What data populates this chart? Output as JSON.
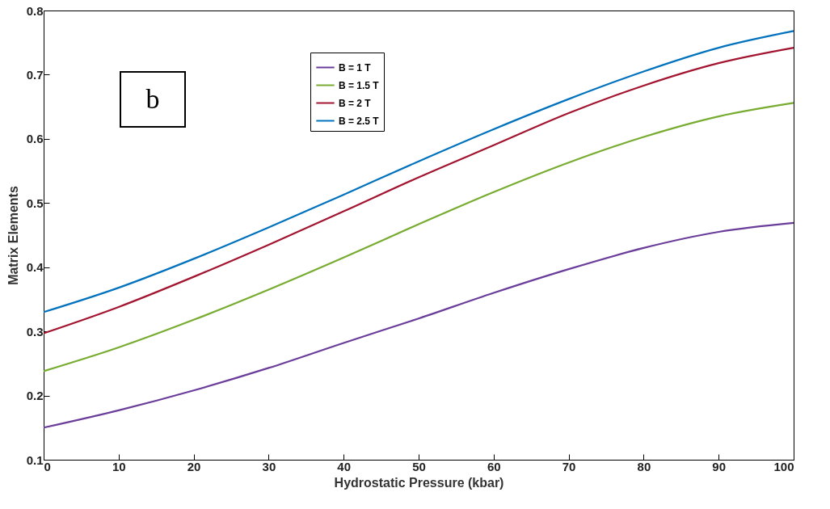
{
  "chart_data": {
    "type": "line",
    "xlabel": "Hydrostatic Pressure (kbar)",
    "ylabel": "Matrix Elements",
    "annotations": [
      "b"
    ],
    "x": [
      0,
      10,
      20,
      30,
      40,
      50,
      60,
      70,
      80,
      90,
      100
    ],
    "series": [
      {
        "name": "B = 1 T",
        "color": "#6a3d9a",
        "values": [
          0.15,
          0.177,
          0.208,
          0.243,
          0.282,
          0.32,
          0.36,
          0.397,
          0.43,
          0.455,
          0.469
        ]
      },
      {
        "name": "B = 1.5 T",
        "color": "#77ac30",
        "values": [
          0.238,
          0.275,
          0.318,
          0.365,
          0.415,
          0.467,
          0.517,
          0.563,
          0.603,
          0.635,
          0.656
        ]
      },
      {
        "name": "B = 2 T",
        "color": "#a2142f",
        "values": [
          0.297,
          0.338,
          0.385,
          0.435,
          0.487,
          0.54,
          0.59,
          0.64,
          0.683,
          0.718,
          0.742
        ]
      },
      {
        "name": "B = 2.5 T",
        "color": "#0072bd",
        "values": [
          0.33,
          0.368,
          0.413,
          0.462,
          0.513,
          0.565,
          0.615,
          0.662,
          0.705,
          0.742,
          0.768
        ]
      }
    ],
    "xlim": [
      0,
      100
    ],
    "xticks": [
      0,
      10,
      20,
      30,
      40,
      50,
      60,
      70,
      80,
      90,
      100
    ],
    "ylim": [
      0.1,
      0.8
    ],
    "yticks": [
      0.1,
      0.2,
      0.3,
      0.4,
      0.5,
      0.6,
      0.7,
      0.8
    ],
    "grid": false,
    "legend": "top",
    "marker": "none",
    "line_style": "solid"
  }
}
